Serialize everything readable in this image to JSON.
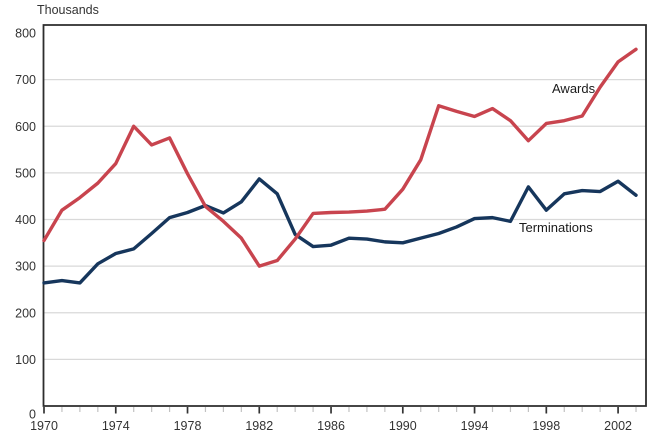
{
  "chart_data": {
    "type": "line",
    "title": "Thousands",
    "xlabel": "",
    "ylabel": "Thousands",
    "ylim": [
      0,
      800
    ],
    "grid": "horizontal",
    "legend": "inline-labels",
    "y_ticks": [
      800,
      700,
      600,
      500,
      400,
      300,
      200,
      100,
      0
    ],
    "x_major_ticks": [
      1970,
      1974,
      1978,
      1982,
      1986,
      1990,
      1994,
      1998,
      2002
    ],
    "x_minor_tick_step": 1,
    "x": [
      1970,
      1971,
      1972,
      1973,
      1974,
      1975,
      1976,
      1977,
      1978,
      1979,
      1980,
      1981,
      1982,
      1983,
      1984,
      1985,
      1986,
      1987,
      1988,
      1989,
      1990,
      1991,
      1992,
      1993,
      1994,
      1995,
      1996,
      1997,
      1998,
      1999,
      2000,
      2001,
      2002,
      2003
    ],
    "series": [
      {
        "name": "Awards",
        "color": "#c8444e",
        "values": [
          355,
          420,
          447,
          478,
          520,
          600,
          560,
          575,
          498,
          428,
          396,
          360,
          300,
          312,
          358,
          413,
          415,
          416,
          418,
          422,
          465,
          528,
          644,
          632,
          621,
          638,
          612,
          569,
          606,
          612,
          622,
          684,
          738,
          765
        ]
      },
      {
        "name": "Terminations",
        "color": "#16365c",
        "values": [
          264,
          269,
          264,
          305,
          327,
          337,
          370,
          404,
          415,
          430,
          414,
          438,
          487,
          455,
          368,
          342,
          345,
          360,
          358,
          352,
          350,
          360,
          370,
          384,
          402,
          404,
          396,
          470,
          420,
          455,
          462,
          460,
          482,
          452
        ]
      }
    ]
  }
}
